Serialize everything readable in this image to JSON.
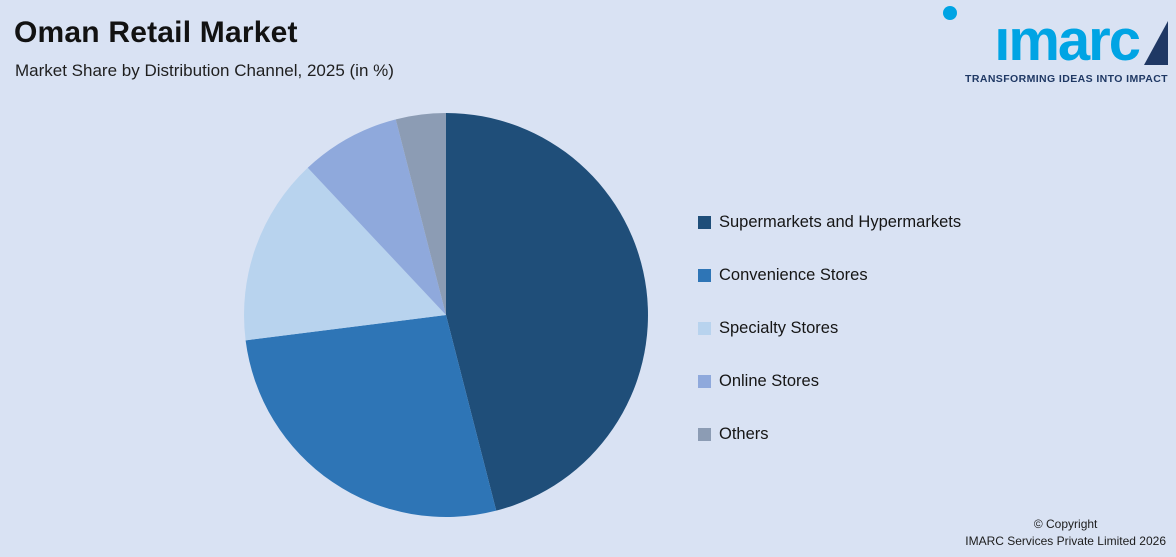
{
  "canvas": {
    "background": "#d9e2f3"
  },
  "header": {
    "title": "Oman Retail Market",
    "subtitle": "Market Share by Distribution Channel, 2025 (in %)"
  },
  "logo": {
    "wordmark": "imarc",
    "tagline": "TRANSFORMING IDEAS INTO IMPACT",
    "brand_color": "#00a4e4",
    "sail_color": "#1f3864"
  },
  "chart_data": {
    "type": "pie",
    "title": "Oman Retail Market - Market Share by Distribution Channel, 2025 (in %)",
    "categories": [
      "Supermarkets and Hypermarkets",
      "Convenience Stores",
      "Specialty Stores",
      "Online Stores",
      "Others"
    ],
    "values": [
      46,
      27,
      15,
      8,
      4
    ],
    "colors": [
      "#1f4e79",
      "#2e75b6",
      "#b8d3ee",
      "#8fa9dc",
      "#8c9cb4"
    ],
    "start_angle_deg": 0,
    "direction": "clockwise",
    "legend_position": "right",
    "data_labels": false
  },
  "legend": {
    "items": [
      {
        "label": "Supermarkets and Hypermarkets",
        "color": "#1f4e79"
      },
      {
        "label": "Convenience Stores",
        "color": "#2e75b6"
      },
      {
        "label": "Specialty Stores",
        "color": "#b8d3ee"
      },
      {
        "label": "Online Stores",
        "color": "#8fa9dc"
      },
      {
        "label": "Others",
        "color": "#8c9cb4"
      }
    ]
  },
  "footer": {
    "copyright_line1": "© Copyright",
    "copyright_line2": "IMARC Services Private Limited 2026"
  }
}
